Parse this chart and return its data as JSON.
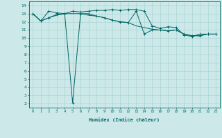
{
  "line1_x": [
    0,
    1,
    2,
    3,
    4,
    5,
    6,
    7,
    8,
    9,
    10,
    11,
    12,
    13,
    14,
    15,
    16,
    17,
    18,
    19,
    20,
    21,
    22,
    23
  ],
  "line1_y": [
    13.0,
    12.1,
    13.3,
    13.1,
    13.0,
    13.3,
    13.2,
    13.3,
    13.4,
    13.4,
    13.5,
    13.4,
    13.5,
    13.5,
    13.3,
    11.5,
    11.2,
    11.4,
    11.3,
    10.4,
    10.2,
    10.5,
    10.5,
    10.5
  ],
  "line2_x": [
    0,
    1,
    2,
    3,
    4,
    5,
    6,
    7,
    8,
    9,
    10,
    11,
    12,
    13,
    14,
    15,
    16,
    17,
    18,
    19,
    20,
    21,
    22,
    23
  ],
  "line2_y": [
    13.0,
    12.1,
    12.5,
    12.8,
    13.0,
    13.0,
    13.0,
    12.8,
    12.7,
    12.5,
    12.2,
    12.0,
    11.9,
    11.5,
    11.3,
    11.1,
    11.0,
    10.9,
    11.0,
    10.5,
    10.3,
    10.3,
    10.5,
    10.5
  ],
  "line3_x": [
    0,
    1,
    2,
    3,
    4,
    5,
    6,
    7,
    8,
    9,
    10,
    11,
    12,
    13,
    14,
    15,
    16,
    17,
    18,
    19,
    20,
    21,
    22,
    23
  ],
  "line3_y": [
    13.0,
    12.1,
    12.5,
    12.9,
    13.0,
    2.1,
    13.0,
    13.0,
    12.7,
    12.5,
    12.2,
    12.0,
    11.9,
    13.3,
    10.5,
    11.0,
    11.0,
    10.9,
    11.0,
    10.5,
    10.3,
    10.3,
    10.5,
    10.5
  ],
  "line_color": "#006666",
  "bg_color": "#cce8e8",
  "grid_color": "#aad4d4",
  "xlabel": "Humidex (Indice chaleur)",
  "ylim": [
    1.5,
    14.5
  ],
  "xlim": [
    -0.5,
    23.5
  ],
  "yticks": [
    2,
    3,
    4,
    5,
    6,
    7,
    8,
    9,
    10,
    11,
    12,
    13,
    14
  ],
  "xticks": [
    0,
    1,
    2,
    3,
    4,
    5,
    6,
    7,
    8,
    9,
    10,
    11,
    12,
    13,
    14,
    15,
    16,
    17,
    18,
    19,
    20,
    21,
    22,
    23
  ]
}
